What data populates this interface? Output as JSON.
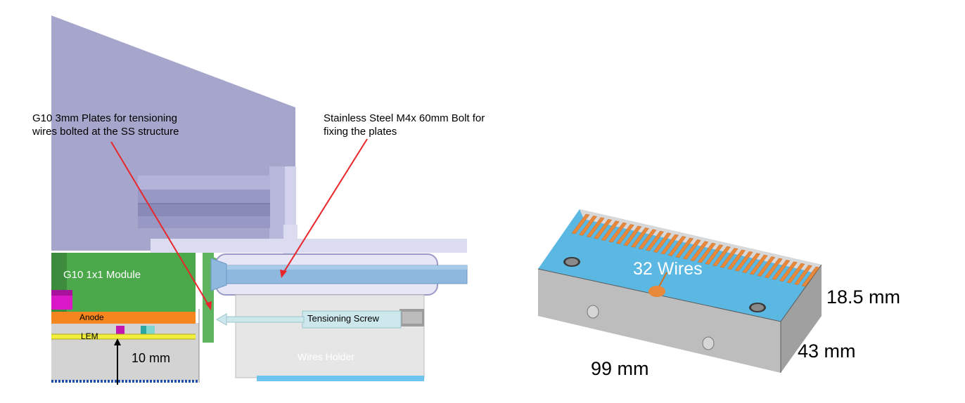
{
  "left_diagram": {
    "annotation_plates_line1": "G10 3mm Plates for tensioning",
    "annotation_plates_line2": "wires bolted at the SS structure",
    "annotation_bolt_line1": "Stainless Steel M4x 60mm Bolt for",
    "annotation_bolt_line2": "fixing the plates",
    "module_label": "G10 1x1 Module",
    "anode_label": "Anode",
    "lem_label": "LEM",
    "gap_label": "10 mm",
    "screw_label": "Tensioning Screw",
    "holder_label": "Wires Holder"
  },
  "right_diagram": {
    "wires_label": "32 Wires",
    "height_label": "18.5 mm",
    "depth_label": "43 mm",
    "length_label": "99 mm"
  },
  "colors": {
    "structure": "#a6a6cc",
    "module": "#4ba84b",
    "anode": "#f5861f",
    "lem": "#f2ee3c",
    "bolt": "#8eb8de",
    "screw": "#cde8ec",
    "holder": "#e6e6e6",
    "plate": "#5fb55f",
    "annotation_arrow": "#e8262b",
    "block_top": "#5bb8e2",
    "block_side": "#bdbdbd",
    "wire_pads": "#e8883a"
  }
}
